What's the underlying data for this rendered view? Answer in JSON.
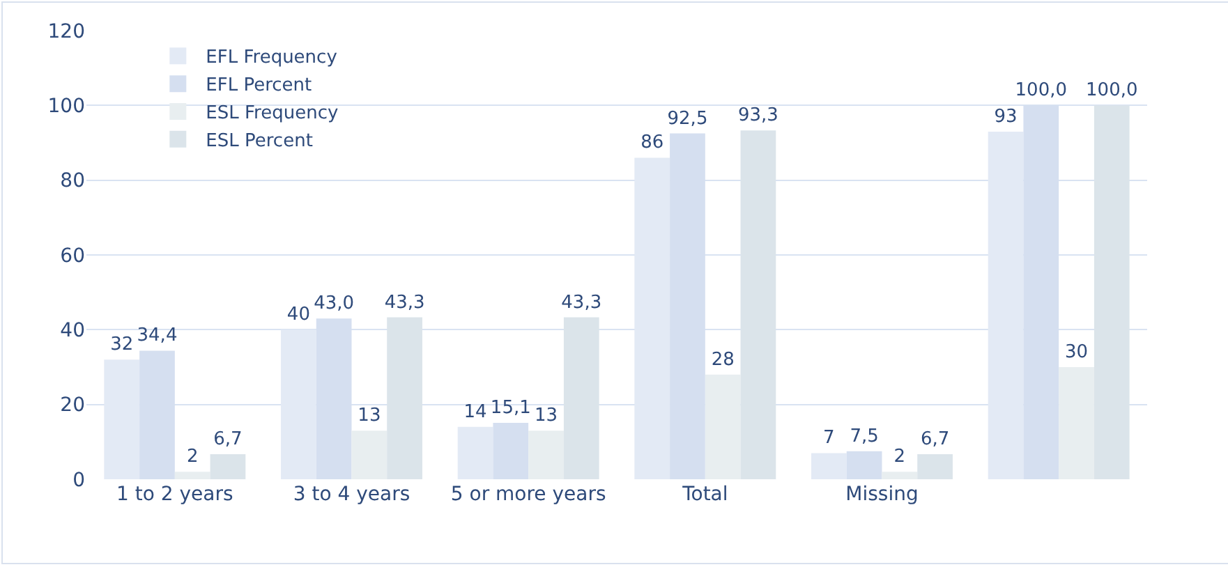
{
  "chart_data": {
    "type": "bar",
    "categories": [
      "1 to 2 years",
      "3 to 4 years",
      "5 or more years",
      "Total",
      "Missing",
      null
    ],
    "series": [
      {
        "name": "EFL Frequency",
        "color": "#e3eaf5",
        "values": [
          32,
          40,
          14,
          86,
          7,
          93
        ],
        "value_labels": [
          "32",
          "40",
          "14",
          "86",
          "7",
          "93"
        ]
      },
      {
        "name": "EFL Percent",
        "color": "#d5dff0",
        "values": [
          34.4,
          43.0,
          15.1,
          92.5,
          7.5,
          100.0
        ],
        "value_labels": [
          "34,4",
          "43,0",
          "15,1",
          "92,5",
          "7,5",
          "100,0"
        ]
      },
      {
        "name": "ESL Frequency",
        "color": "#e8eef0",
        "values": [
          2,
          13,
          13,
          28,
          2,
          30
        ],
        "value_labels": [
          "2",
          "13",
          "13",
          "28",
          "2",
          "30"
        ]
      },
      {
        "name": "ESL Percent",
        "color": "#dbe4ea",
        "values": [
          6.7,
          43.3,
          43.3,
          93.3,
          6.7,
          100.0
        ],
        "value_labels": [
          "6,7",
          "43,3",
          "43,3",
          "93,3",
          "6,7",
          "100,0"
        ]
      }
    ],
    "ylim": [
      0,
      120
    ],
    "yticks": [
      0,
      20,
      40,
      60,
      80,
      100,
      120
    ],
    "grid": "y",
    "legend": "top left"
  }
}
